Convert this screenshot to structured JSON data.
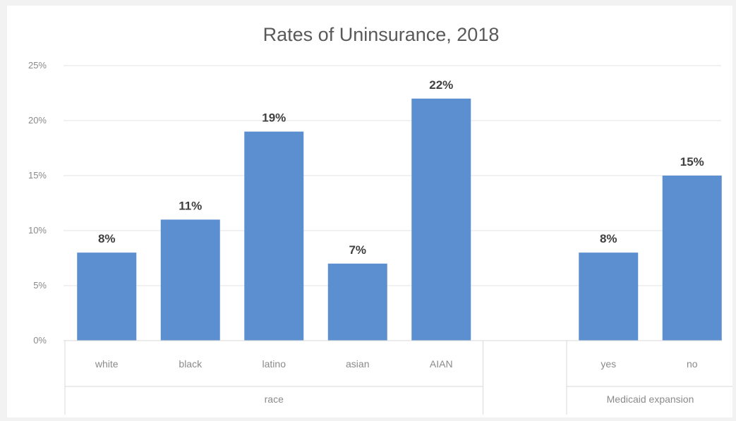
{
  "chart_data": {
    "type": "bar",
    "title": "Rates of Uninsurance, 2018",
    "xlabel": "",
    "ylabel": "",
    "ylim": [
      0,
      25
    ],
    "yticks": [
      "0%",
      "5%",
      "10%",
      "15%",
      "20%",
      "25%"
    ],
    "ytick_values": [
      0,
      5,
      10,
      15,
      20,
      25
    ],
    "grid": true,
    "legend": "none",
    "bar_color": "#5b8fd0",
    "groups": [
      {
        "name": "race",
        "categories": [
          "white",
          "black",
          "latino",
          "asian",
          "AIAN"
        ],
        "values": [
          8,
          11,
          19,
          7,
          22
        ],
        "labels": [
          "8%",
          "11%",
          "19%",
          "7%",
          "22%"
        ]
      },
      {
        "name": "Medicaid expansion",
        "categories": [
          "yes",
          "no"
        ],
        "values": [
          8,
          15
        ],
        "labels": [
          "8%",
          "15%"
        ]
      }
    ]
  }
}
